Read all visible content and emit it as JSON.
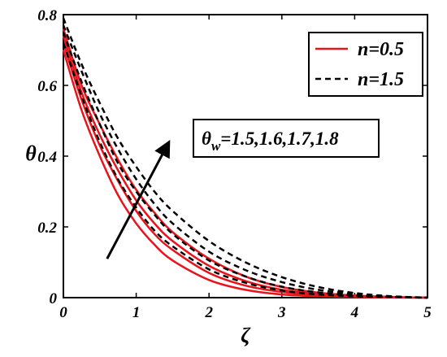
{
  "chart_data": {
    "type": "line",
    "xlabel": "ζ",
    "ylabel": "θ",
    "xlim": [
      0,
      5
    ],
    "ylim": [
      0,
      0.8
    ],
    "xticks": [
      "0",
      "1",
      "2",
      "3",
      "4",
      "5"
    ],
    "yticks": [
      "0",
      "0.2",
      "0.4",
      "0.6",
      "0.8"
    ],
    "grid": false,
    "legend": {
      "placement": "top-right",
      "entries": [
        {
          "label": "n=0.5",
          "color": "#e8141c",
          "style": "solid"
        },
        {
          "label": "n=1.5",
          "color": "#000000",
          "style": "dashed"
        }
      ]
    },
    "annotation": {
      "symbol": "θ",
      "subscript": "w",
      "text": "=1.5,1.6,1.7,1.8"
    },
    "arrow": {
      "from": [
        0.6,
        0.11
      ],
      "to": [
        1.45,
        0.44
      ]
    },
    "x": [
      0,
      0.25,
      0.5,
      0.75,
      1,
      1.25,
      1.5,
      2,
      2.5,
      3,
      3.5,
      4,
      4.5,
      5
    ],
    "series": [
      {
        "group": "n=0.5",
        "values": [
          0.7,
          0.53,
          0.4,
          0.29,
          0.21,
          0.15,
          0.105,
          0.05,
          0.022,
          0.009,
          0.004,
          0.0015,
          0.0005,
          0
        ]
      },
      {
        "group": "n=0.5",
        "values": [
          0.72,
          0.56,
          0.43,
          0.33,
          0.245,
          0.18,
          0.135,
          0.07,
          0.034,
          0.016,
          0.007,
          0.003,
          0.001,
          0
        ]
      },
      {
        "group": "n=0.5",
        "values": [
          0.74,
          0.58,
          0.46,
          0.36,
          0.275,
          0.21,
          0.16,
          0.09,
          0.047,
          0.022,
          0.01,
          0.004,
          0.0015,
          0
        ]
      },
      {
        "group": "n=0.5",
        "values": [
          0.76,
          0.6,
          0.49,
          0.39,
          0.305,
          0.24,
          0.185,
          0.11,
          0.06,
          0.03,
          0.014,
          0.006,
          0.002,
          0
        ]
      },
      {
        "group": "n=1.5",
        "values": [
          0.72,
          0.57,
          0.44,
          0.335,
          0.255,
          0.19,
          0.145,
          0.08,
          0.042,
          0.02,
          0.009,
          0.004,
          0.0015,
          0
        ]
      },
      {
        "group": "n=1.5",
        "values": [
          0.75,
          0.61,
          0.49,
          0.38,
          0.3,
          0.235,
          0.18,
          0.105,
          0.06,
          0.031,
          0.015,
          0.006,
          0.002,
          0
        ]
      },
      {
        "group": "n=1.5",
        "values": [
          0.77,
          0.64,
          0.52,
          0.42,
          0.335,
          0.265,
          0.21,
          0.13,
          0.078,
          0.044,
          0.022,
          0.01,
          0.003,
          0
        ]
      },
      {
        "group": "n=1.5",
        "values": [
          0.79,
          0.66,
          0.55,
          0.45,
          0.37,
          0.3,
          0.245,
          0.16,
          0.1,
          0.058,
          0.03,
          0.013,
          0.004,
          0
        ]
      }
    ]
  }
}
